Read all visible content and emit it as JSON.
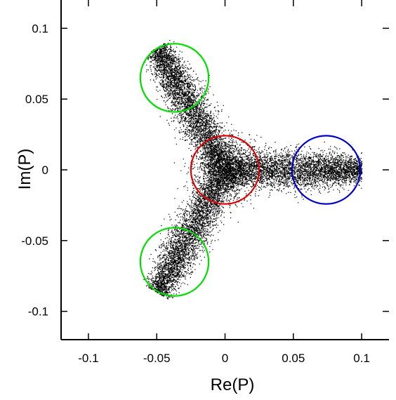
{
  "chart_data": {
    "type": "scatter",
    "title": "",
    "xlabel": "Re(P)",
    "ylabel": "Im(P)",
    "xlim": [
      -0.12,
      0.12
    ],
    "ylim": [
      -0.12,
      0.12
    ],
    "x_ticks": [
      -0.1,
      -0.05,
      0,
      0.05,
      0.1
    ],
    "x_tick_labels": [
      "-0.1",
      "-0.05",
      "0",
      "0.05",
      "0.1"
    ],
    "y_ticks": [
      -0.1,
      -0.05,
      0,
      0.05,
      0.1
    ],
    "y_tick_labels": [
      "-0.1",
      "-0.05",
      "0",
      "0.05",
      "0.1"
    ],
    "grid": false,
    "legend": "none",
    "point_color": "#000000",
    "point_cloud": {
      "shape": "three-armed star (Z3 symmetric)",
      "center": [
        0,
        0
      ],
      "arm_tips": [
        [
          0.1,
          0.0
        ],
        [
          -0.05,
          0.0866
        ],
        [
          -0.05,
          -0.0866
        ]
      ],
      "approximate_point_count": 14000
    },
    "circles": [
      {
        "cx": 0.0,
        "cy": 0.0,
        "r": 0.025,
        "color": "#e00000"
      },
      {
        "cx": 0.074,
        "cy": 0.0,
        "r": 0.025,
        "color": "#0000cc"
      },
      {
        "cx": -0.037,
        "cy": 0.065,
        "r": 0.025,
        "color": "#00dd00"
      },
      {
        "cx": -0.037,
        "cy": -0.065,
        "r": 0.025,
        "color": "#00dd00"
      }
    ]
  }
}
